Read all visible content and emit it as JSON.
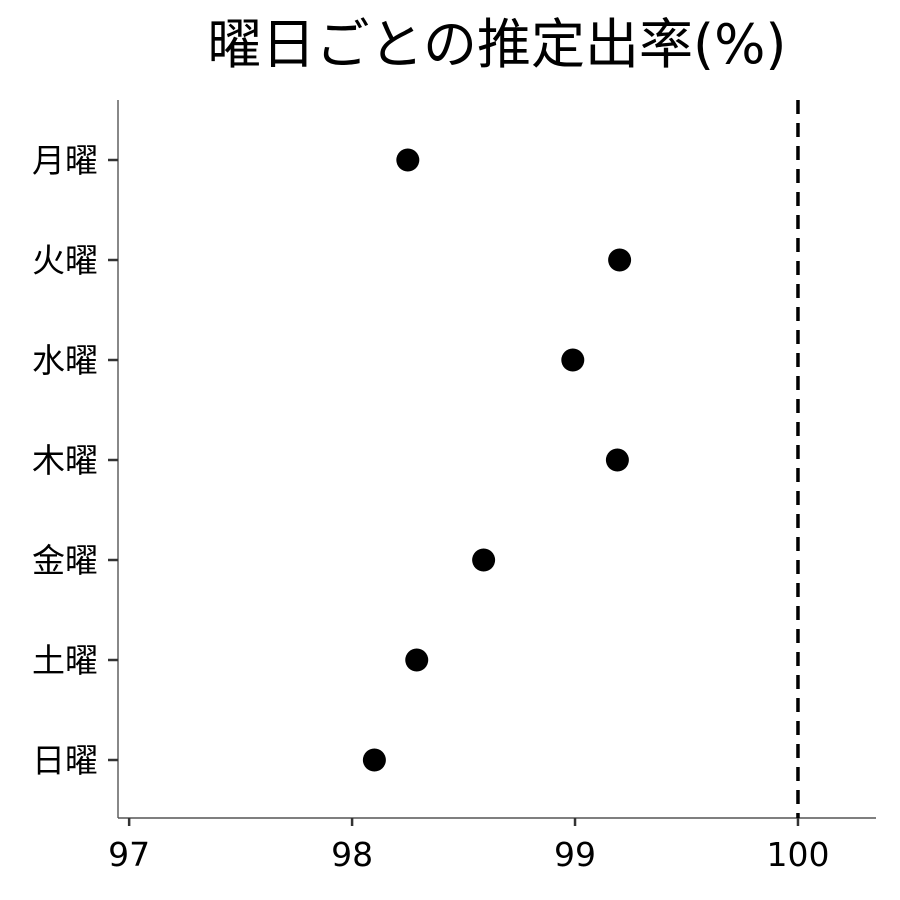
{
  "chart_data": {
    "type": "scatter",
    "title": "曜日ごとの推定出率(%)",
    "xlabel": "",
    "ylabel": "",
    "categories": [
      "月曜",
      "火曜",
      "水曜",
      "木曜",
      "金曜",
      "土曜",
      "日曜"
    ],
    "values": [
      98.25,
      99.2,
      98.99,
      99.19,
      98.59,
      98.29,
      98.1
    ],
    "xlim": [
      96.95,
      100.35
    ],
    "xticks": [
      "97",
      "98",
      "99",
      "100"
    ],
    "reference_line": {
      "x": 100,
      "style": "dashed"
    },
    "grid": false,
    "legend": "none",
    "point_color": "#000000",
    "axis_color": "#555555",
    "reference_line_color": "#000000"
  }
}
